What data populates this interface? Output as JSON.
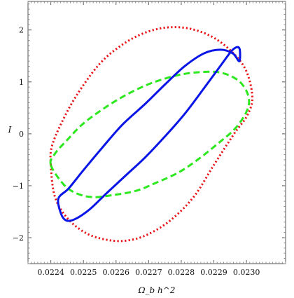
{
  "chart_data": {
    "type": "line",
    "title": "",
    "xlabel": "Ω_b h^2",
    "ylabel": "I",
    "xlim": [
      0.02233,
      0.02312
    ],
    "ylim": [
      -2.5,
      2.55
    ],
    "grid": false,
    "legend": "none",
    "x_ticks": [
      0.0224,
      0.0225,
      0.0226,
      0.0227,
      0.0228,
      0.0229,
      0.023
    ],
    "x_tick_labels": [
      "0.0224",
      "0.0225",
      "0.0226",
      "0.0227",
      "0.0228",
      "0.0229",
      "0.0230"
    ],
    "y_ticks": [
      -2,
      -1,
      0,
      1,
      2
    ],
    "y_tick_labels": [
      "−2",
      "−1",
      "0",
      "1",
      "2"
    ],
    "series": [
      {
        "style": "dotted",
        "color": "#e8141a",
        "x": [
          0.0224,
          0.022412,
          0.02245,
          0.02251,
          0.02258,
          0.02264,
          0.0227,
          0.02277,
          0.02284,
          0.0229,
          0.022962,
          0.023002,
          0.023018,
          0.023,
          0.02296,
          0.0229,
          0.02283,
          0.02276,
          0.02269,
          0.02262,
          0.02255,
          0.02248,
          0.022432,
          0.022403,
          0.0224
        ],
        "y": [
          -0.6,
          -1.2,
          -1.62,
          -1.92,
          -2.05,
          -2.05,
          -1.93,
          -1.65,
          -1.2,
          -0.6,
          0.0,
          0.35,
          0.7,
          1.2,
          1.55,
          1.85,
          2.02,
          2.05,
          1.95,
          1.72,
          1.35,
          0.75,
          0.2,
          -0.25,
          -0.6
        ]
      },
      {
        "style": "dashed",
        "color": "#2de81f",
        "x": [
          0.0224,
          0.02244,
          0.02248,
          0.02253,
          0.02259,
          0.02266,
          0.02272,
          0.02279,
          0.02285,
          0.02291,
          0.022965,
          0.022998,
          0.023008,
          0.022998,
          0.02297,
          0.02292,
          0.02286,
          0.02279,
          0.02271,
          0.02264,
          0.02257,
          0.0225,
          0.02245,
          0.022413,
          0.0224
        ],
        "y": [
          -0.6,
          -0.98,
          -1.15,
          -1.22,
          -1.18,
          -1.1,
          -0.95,
          -0.75,
          -0.5,
          -0.2,
          0.1,
          0.4,
          0.62,
          0.85,
          1.05,
          1.18,
          1.19,
          1.13,
          0.98,
          0.78,
          0.52,
          0.2,
          -0.12,
          -0.38,
          -0.6
        ]
      },
      {
        "style": "solid",
        "color": "#0a16e6",
        "x": [
          0.022423,
          0.022432,
          0.022448,
          0.022475,
          0.02252,
          0.02257,
          0.02263,
          0.02269,
          0.02275,
          0.02281,
          0.02287,
          0.022925,
          0.022958,
          0.022978,
          0.022978,
          0.022958,
          0.02292,
          0.02287,
          0.02281,
          0.02275,
          0.02269,
          0.02262,
          0.02256,
          0.0225,
          0.022455,
          0.022423
        ],
        "y": [
          -1.25,
          -1.55,
          -1.67,
          -1.64,
          -1.45,
          -1.15,
          -0.8,
          -0.45,
          -0.05,
          0.38,
          0.88,
          1.35,
          1.62,
          1.65,
          1.4,
          1.55,
          1.62,
          1.55,
          1.3,
          0.95,
          0.58,
          0.18,
          -0.25,
          -0.7,
          -1.05,
          -1.25
        ]
      }
    ]
  }
}
